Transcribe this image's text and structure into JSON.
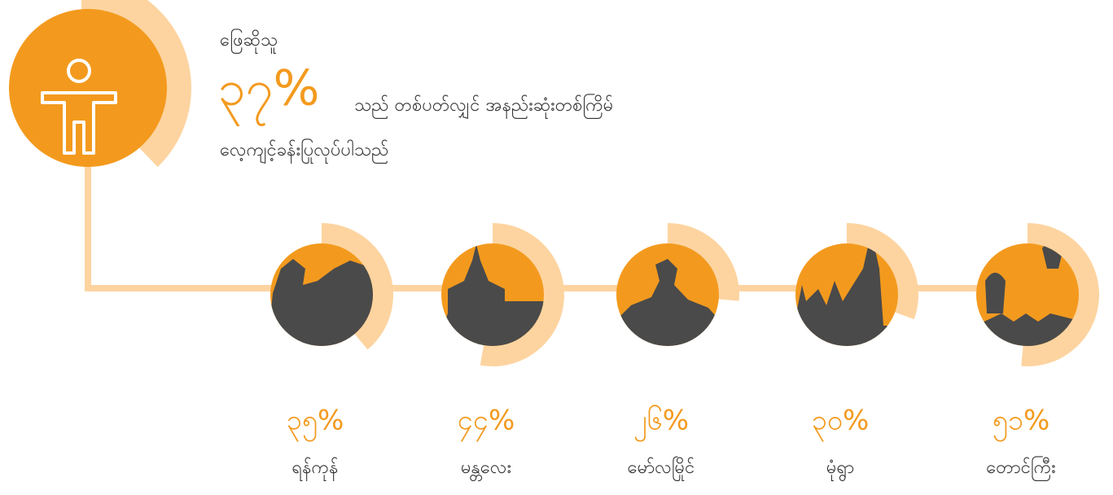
{
  "header": {
    "label": "ဖြေဆိုသူ",
    "percent": "၃၇%",
    "line1": "သည် တစ်ပတ်လျှင် အနည်းဆုံးတစ်ကြိမ်",
    "line2": "လေ့ကျင့်ခန်းပြုလုပ်ပါသည်"
  },
  "cities": [
    {
      "percent": "၃၅%",
      "name": "ရန်ကုန်"
    },
    {
      "percent": "၄၄%",
      "name": "မန္တလေး"
    },
    {
      "percent": "၂၆%",
      "name": "မော်လမြိုင်"
    },
    {
      "percent": "၃၀%",
      "name": "မုံရွာ"
    },
    {
      "percent": "၅၁%",
      "name": "တောင်ကြီး"
    }
  ]
}
